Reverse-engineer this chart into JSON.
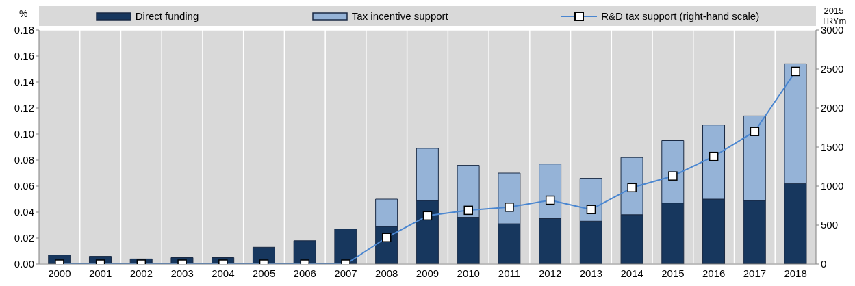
{
  "chart_data": {
    "type": "bar",
    "stacked": true,
    "ylabel": "%",
    "y2label": "2015 TRYm",
    "categories": [
      "2000",
      "2001",
      "2002",
      "2003",
      "2004",
      "2005",
      "2006",
      "2007",
      "2008",
      "2009",
      "2010",
      "2011",
      "2012",
      "2013",
      "2014",
      "2015",
      "2016",
      "2017",
      "2018"
    ],
    "series": [
      {
        "name": "Direct funding",
        "color": "#17375e",
        "values": [
          0.007,
          0.006,
          0.004,
          0.005,
          0.005,
          0.013,
          0.018,
          0.027,
          0.029,
          0.049,
          0.036,
          0.031,
          0.035,
          0.033,
          0.038,
          0.047,
          0.05,
          0.049,
          0.062
        ]
      },
      {
        "name": "Tax incentive support",
        "color": "#95b3d7",
        "values": [
          0,
          0,
          0,
          0,
          0,
          0,
          0,
          0,
          0.021,
          0.04,
          0.04,
          0.039,
          0.042,
          0.033,
          0.044,
          0.048,
          0.057,
          0.065,
          0.092
        ]
      },
      {
        "name": "R&D tax support (right-hand scale)",
        "type": "line",
        "axis": "y2",
        "color": "#4a86d0",
        "marker": "square",
        "values": [
          0,
          0,
          0,
          0,
          0,
          0,
          0,
          0,
          340,
          620,
          690,
          730,
          820,
          700,
          980,
          1130,
          1380,
          1700,
          2470
        ]
      }
    ],
    "ylim": [
      0,
      0.18
    ],
    "yticks": [
      {
        "value": 0,
        "label": "0.00"
      },
      {
        "value": 0.02,
        "label": "0.02"
      },
      {
        "value": 0.04,
        "label": "0.04"
      },
      {
        "value": 0.06,
        "label": "0.06"
      },
      {
        "value": 0.08,
        "label": "0.08"
      },
      {
        "value": 0.1,
        "label": "0.10"
      },
      {
        "value": 0.12,
        "label": "0.12"
      },
      {
        "value": 0.14,
        "label": "0.14"
      },
      {
        "value": 0.16,
        "label": "0.16"
      },
      {
        "value": 0.18,
        "label": "0.18"
      }
    ],
    "y2lim": [
      0,
      3000
    ],
    "y2ticks": [
      0,
      500,
      1000,
      1500,
      2000,
      2500,
      3000
    ],
    "grid": true,
    "legend": "top"
  }
}
